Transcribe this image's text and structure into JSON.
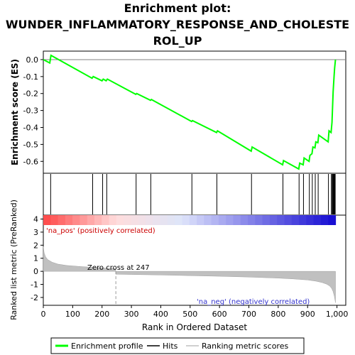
{
  "title": [
    "Enrichment plot:",
    "WUNDER_INFLAMMATORY_RESPONSE_AND_CHOLESTE",
    "ROL_UP"
  ],
  "colors": {
    "es_line": "#00ff00",
    "hits": "#000000",
    "metric_fill": "#c0c0c0",
    "pos_text": "#cc0000",
    "neg_text": "#3333cc"
  },
  "legend": {
    "enrichment": "Enrichment profile",
    "hits": "Hits",
    "metric": "Ranking metric scores"
  },
  "chart_data": [
    {
      "type": "line",
      "name": "enrichment-score",
      "ylabel": "Enrichment score (ES)",
      "ylim": [
        -0.67,
        0.05
      ],
      "yticks": [
        0.0,
        -0.1,
        -0.2,
        -0.3,
        -0.4,
        -0.5,
        -0.6
      ],
      "ytick_labels": [
        "0.0",
        "-0.1",
        "-0.2",
        "-0.3",
        "-0.4",
        "-0.5",
        "-0.6"
      ],
      "grid": false,
      "series": [
        {
          "x": [
            0,
            22,
            26,
            166,
            170,
            200,
            204,
            214,
            218,
            315,
            318,
            365,
            368,
            505,
            508,
            590,
            593,
            708,
            711,
            815,
            818,
            870,
            873,
            885,
            888,
            905,
            908,
            915,
            918,
            925,
            928,
            935,
            938,
            970,
            973,
            980,
            983,
            985,
            987,
            990,
            992,
            995
          ],
          "values": [
            0.0,
            -0.02,
            0.025,
            -0.11,
            -0.1,
            -0.125,
            -0.115,
            -0.125,
            -0.115,
            -0.205,
            -0.2,
            -0.24,
            -0.235,
            -0.365,
            -0.36,
            -0.43,
            -0.42,
            -0.54,
            -0.515,
            -0.62,
            -0.595,
            -0.645,
            -0.61,
            -0.62,
            -0.58,
            -0.6,
            -0.565,
            -0.555,
            -0.515,
            -0.52,
            -0.485,
            -0.49,
            -0.445,
            -0.485,
            -0.42,
            -0.43,
            -0.37,
            -0.28,
            -0.19,
            -0.1,
            -0.05,
            0.0
          ]
        }
      ],
      "hits": [
        25,
        168,
        202,
        216,
        316,
        366,
        506,
        591,
        709,
        816,
        871,
        886,
        906,
        916,
        926,
        936,
        971,
        981,
        984,
        986,
        988,
        990,
        991,
        993,
        994
      ]
    },
    {
      "type": "area",
      "name": "ranked-list-metric",
      "xlabel": "Rank in Ordered Dataset",
      "ylabel": "Ranked list metric (PreRanked)",
      "xlim": [
        0,
        1030
      ],
      "ylim": [
        -2.6,
        4.3
      ],
      "xticks": [
        0,
        100,
        200,
        300,
        400,
        500,
        600,
        700,
        800,
        900,
        1000
      ],
      "xtick_labels": [
        "0",
        "100",
        "200",
        "300",
        "400",
        "500",
        "600",
        "700",
        "800",
        "900",
        "1,000"
      ],
      "yticks": [
        4,
        3,
        2,
        1,
        0,
        -1,
        -2
      ],
      "ytick_labels": [
        "4",
        "3",
        "2",
        "1",
        "0",
        "-1",
        "-2"
      ],
      "x": [
        0,
        3,
        8,
        15,
        30,
        50,
        80,
        120,
        170,
        246,
        247,
        300,
        400,
        500,
        600,
        700,
        800,
        850,
        900,
        930,
        950,
        965,
        975,
        982,
        987,
        991,
        995
      ],
      "values": [
        1.9,
        1.4,
        1.1,
        0.9,
        0.7,
        0.55,
        0.45,
        0.38,
        0.3,
        0.2,
        -0.22,
        -0.24,
        -0.28,
        -0.33,
        -0.38,
        -0.44,
        -0.52,
        -0.58,
        -0.66,
        -0.76,
        -0.86,
        -0.98,
        -1.12,
        -1.3,
        -1.55,
        -1.9,
        -2.4
      ],
      "zero_cross": 247,
      "zero_cross_label": "Zero cross at 247",
      "pos_label": "'na_pos' (positively correlated)",
      "neg_label": "'na_neg' (negatively correlated)"
    }
  ]
}
